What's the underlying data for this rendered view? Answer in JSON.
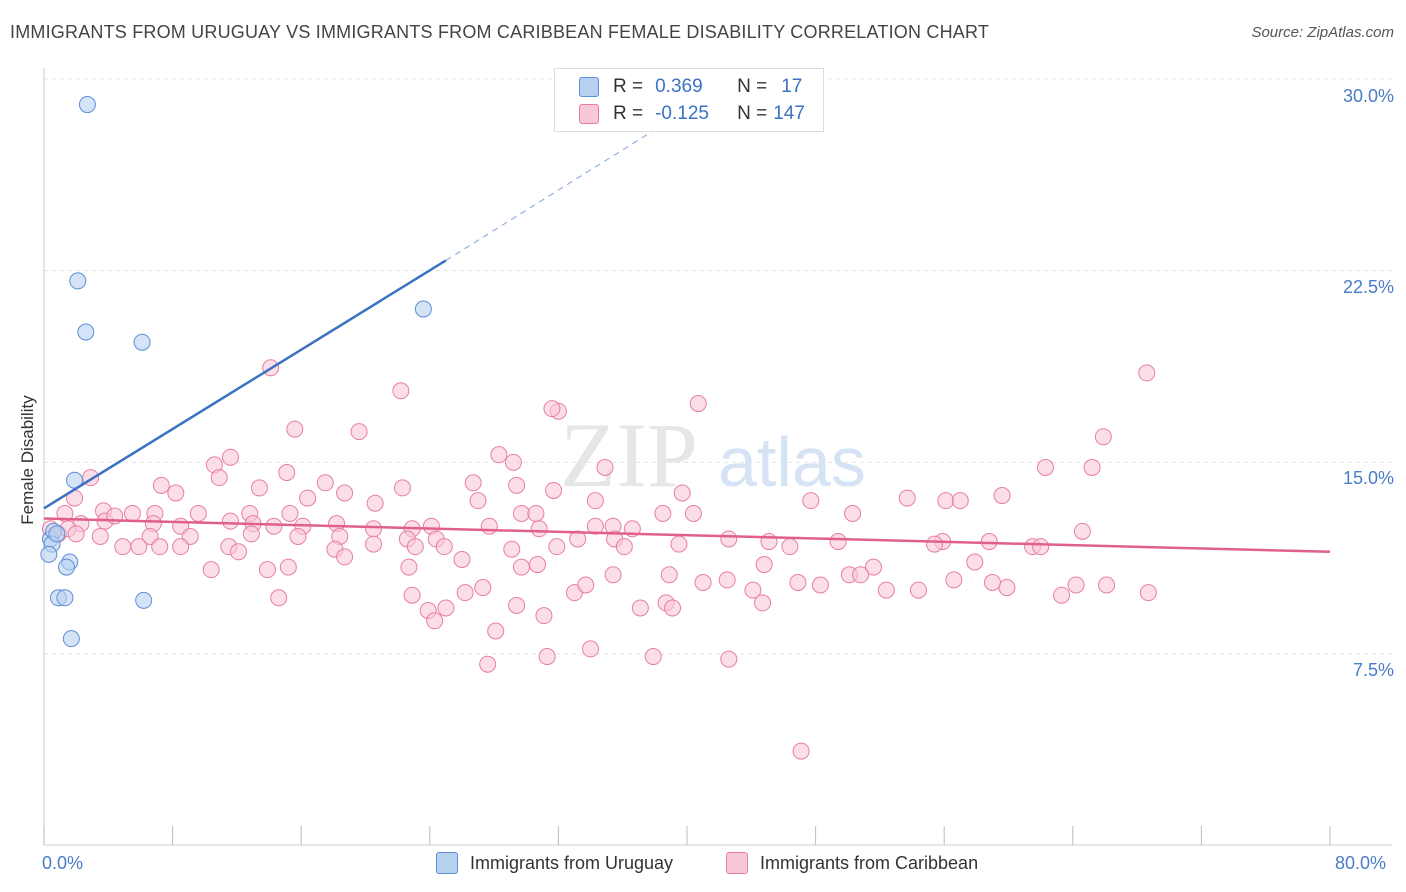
{
  "title": "IMMIGRANTS FROM URUGUAY VS IMMIGRANTS FROM CARIBBEAN FEMALE DISABILITY CORRELATION CHART",
  "source": "Source: ZipAtlas.com",
  "watermark": {
    "zip": "ZIP",
    "atlas": "atlas"
  },
  "legend": {
    "r_label": "R =",
    "n_label": "N =",
    "rows": [
      {
        "r": "0.369",
        "n": "17",
        "color": "#5b8fd6",
        "fill": "#b8d0f0"
      },
      {
        "r": "-0.125",
        "n": "147",
        "color": "#e87fa0",
        "fill": "#f8c8d8"
      }
    ]
  },
  "bottom_legend": {
    "uruguay": "Immigrants from Uruguay",
    "caribbean": "Immigrants from Caribbean"
  },
  "chart_data": {
    "type": "scatter",
    "ylabel": "Female Disability",
    "xlabel": "",
    "xlim": [
      0,
      80
    ],
    "ylim": [
      0,
      31
    ],
    "x_tick_labels": [
      "0.0%",
      "80.0%"
    ],
    "y_ticks": [
      7.5,
      15.0,
      22.5,
      30.0
    ],
    "y_tick_labels": [
      "7.5%",
      "15.0%",
      "22.5%",
      "30.0%"
    ],
    "grid": true,
    "series": [
      {
        "name": "Immigrants from Uruguay",
        "color": "#5b8fd6",
        "fill": "#b8d0f0",
        "points": [
          [
            2.7,
            29.0
          ],
          [
            2.1,
            22.1
          ],
          [
            2.6,
            20.1
          ],
          [
            6.1,
            19.7
          ],
          [
            23.6,
            21.0
          ],
          [
            1.9,
            14.3
          ],
          [
            0.4,
            12.0
          ],
          [
            0.6,
            12.3
          ],
          [
            0.5,
            11.8
          ],
          [
            0.3,
            11.4
          ],
          [
            0.8,
            12.2
          ],
          [
            1.6,
            11.1
          ],
          [
            1.4,
            10.9
          ],
          [
            0.9,
            9.7
          ],
          [
            1.3,
            9.7
          ],
          [
            6.2,
            9.6
          ],
          [
            1.7,
            8.1
          ]
        ],
        "trend": {
          "x0": 0,
          "y0": 13.2,
          "x1": 25,
          "y1": 22.9,
          "dashed_to_x": 40,
          "dashed_to_y": 28.8
        }
      },
      {
        "name": "Immigrants from Caribbean",
        "color": "#e87fa0",
        "fill": "#f8c8d8",
        "points": [
          [
            14.1,
            18.7
          ],
          [
            68.6,
            18.5
          ],
          [
            22.2,
            17.8
          ],
          [
            40.7,
            17.3
          ],
          [
            32.0,
            17.0
          ],
          [
            31.6,
            17.1
          ],
          [
            15.6,
            16.3
          ],
          [
            19.6,
            16.2
          ],
          [
            65.9,
            16.0
          ],
          [
            28.3,
            15.3
          ],
          [
            11.6,
            15.2
          ],
          [
            29.2,
            15.0
          ],
          [
            34.9,
            14.8
          ],
          [
            62.3,
            14.8
          ],
          [
            65.2,
            14.8
          ],
          [
            10.6,
            14.9
          ],
          [
            15.1,
            14.6
          ],
          [
            2.9,
            14.4
          ],
          [
            10.9,
            14.4
          ],
          [
            17.5,
            14.2
          ],
          [
            26.7,
            14.2
          ],
          [
            29.4,
            14.1
          ],
          [
            7.3,
            14.1
          ],
          [
            13.4,
            14.0
          ],
          [
            22.3,
            14.0
          ],
          [
            1.9,
            13.6
          ],
          [
            8.2,
            13.8
          ],
          [
            18.7,
            13.8
          ],
          [
            31.7,
            13.9
          ],
          [
            39.7,
            13.8
          ],
          [
            20.6,
            13.4
          ],
          [
            16.4,
            13.6
          ],
          [
            27.0,
            13.5
          ],
          [
            34.3,
            13.5
          ],
          [
            47.7,
            13.5
          ],
          [
            53.7,
            13.6
          ],
          [
            56.1,
            13.5
          ],
          [
            57.0,
            13.5
          ],
          [
            59.6,
            13.7
          ],
          [
            1.3,
            13.0
          ],
          [
            3.7,
            13.1
          ],
          [
            5.5,
            13.0
          ],
          [
            6.9,
            13.0
          ],
          [
            9.6,
            13.0
          ],
          [
            12.8,
            13.0
          ],
          [
            15.3,
            13.0
          ],
          [
            29.7,
            13.0
          ],
          [
            30.6,
            13.0
          ],
          [
            38.5,
            13.0
          ],
          [
            40.4,
            13.0
          ],
          [
            50.3,
            13.0
          ],
          [
            2.3,
            12.6
          ],
          [
            3.8,
            12.7
          ],
          [
            4.4,
            12.9
          ],
          [
            6.8,
            12.6
          ],
          [
            8.5,
            12.5
          ],
          [
            11.6,
            12.7
          ],
          [
            13.0,
            12.6
          ],
          [
            14.3,
            12.5
          ],
          [
            16.1,
            12.5
          ],
          [
            18.2,
            12.6
          ],
          [
            20.5,
            12.4
          ],
          [
            22.9,
            12.4
          ],
          [
            24.1,
            12.5
          ],
          [
            27.7,
            12.5
          ],
          [
            30.8,
            12.4
          ],
          [
            34.3,
            12.5
          ],
          [
            35.4,
            12.5
          ],
          [
            36.6,
            12.4
          ],
          [
            0.4,
            12.4
          ],
          [
            0.9,
            12.2
          ],
          [
            1.5,
            12.4
          ],
          [
            2.0,
            12.2
          ],
          [
            3.5,
            12.1
          ],
          [
            6.6,
            12.1
          ],
          [
            9.1,
            12.1
          ],
          [
            12.9,
            12.2
          ],
          [
            15.8,
            12.1
          ],
          [
            18.4,
            12.1
          ],
          [
            22.6,
            12.0
          ],
          [
            24.4,
            12.0
          ],
          [
            33.2,
            12.0
          ],
          [
            35.5,
            12.0
          ],
          [
            39.5,
            11.8
          ],
          [
            42.6,
            12.0
          ],
          [
            45.1,
            11.9
          ],
          [
            49.4,
            11.9
          ],
          [
            55.9,
            11.9
          ],
          [
            58.8,
            11.9
          ],
          [
            64.6,
            12.3
          ],
          [
            4.9,
            11.7
          ],
          [
            5.9,
            11.7
          ],
          [
            7.2,
            11.7
          ],
          [
            8.5,
            11.7
          ],
          [
            11.5,
            11.7
          ],
          [
            18.1,
            11.6
          ],
          [
            20.5,
            11.8
          ],
          [
            23.1,
            11.7
          ],
          [
            24.9,
            11.7
          ],
          [
            29.1,
            11.6
          ],
          [
            31.9,
            11.7
          ],
          [
            36.1,
            11.7
          ],
          [
            46.4,
            11.7
          ],
          [
            55.4,
            11.8
          ],
          [
            61.5,
            11.7
          ],
          [
            62.0,
            11.7
          ],
          [
            12.1,
            11.5
          ],
          [
            18.7,
            11.3
          ],
          [
            26.0,
            11.2
          ],
          [
            29.7,
            10.9
          ],
          [
            30.7,
            11.0
          ],
          [
            44.8,
            11.0
          ],
          [
            51.6,
            10.9
          ],
          [
            57.9,
            11.1
          ],
          [
            10.4,
            10.8
          ],
          [
            13.9,
            10.8
          ],
          [
            15.2,
            10.9
          ],
          [
            22.7,
            10.9
          ],
          [
            35.4,
            10.6
          ],
          [
            38.9,
            10.6
          ],
          [
            41.0,
            10.3
          ],
          [
            44.1,
            10.0
          ],
          [
            46.9,
            10.3
          ],
          [
            48.3,
            10.2
          ],
          [
            59.9,
            10.1
          ],
          [
            64.2,
            10.2
          ],
          [
            66.1,
            10.2
          ],
          [
            68.7,
            9.9
          ],
          [
            14.6,
            9.7
          ],
          [
            22.9,
            9.8
          ],
          [
            26.2,
            9.9
          ],
          [
            27.3,
            10.1
          ],
          [
            33.0,
            9.9
          ],
          [
            33.7,
            10.2
          ],
          [
            42.5,
            10.4
          ],
          [
            50.1,
            10.6
          ],
          [
            50.8,
            10.6
          ],
          [
            52.4,
            10.0
          ],
          [
            54.4,
            10.0
          ],
          [
            56.6,
            10.4
          ],
          [
            59.0,
            10.3
          ],
          [
            23.9,
            9.2
          ],
          [
            25.0,
            9.3
          ],
          [
            29.4,
            9.4
          ],
          [
            31.1,
            9.0
          ],
          [
            37.1,
            9.3
          ],
          [
            38.7,
            9.5
          ],
          [
            39.1,
            9.3
          ],
          [
            24.3,
            8.8
          ],
          [
            28.1,
            8.4
          ],
          [
            27.6,
            7.1
          ],
          [
            31.3,
            7.4
          ],
          [
            34.0,
            7.7
          ],
          [
            37.9,
            7.4
          ]
        ],
        "extra_points": [
          [
            42.6,
            7.3
          ],
          [
            47.1,
            3.7
          ],
          [
            63.3,
            9.8
          ],
          [
            44.7,
            9.5
          ]
        ],
        "trend": {
          "x0": 0,
          "y0": 12.8,
          "x1": 80,
          "y1": 11.5
        }
      }
    ]
  }
}
